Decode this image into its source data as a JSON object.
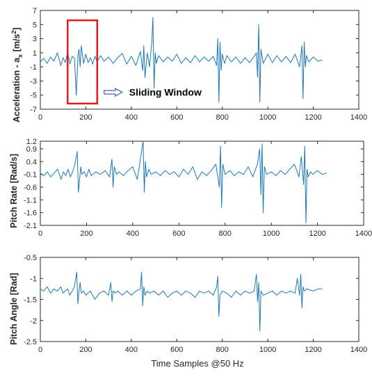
{
  "chart_data": [
    {
      "type": "line",
      "ylabel": "Acceleration - a",
      "ylabel_sub": "x",
      "ylabel_unit": "[m/s",
      "ylabel_sup": "2",
      "ylabel_close": "]",
      "xlim": [
        0,
        1400
      ],
      "ylim": [
        -7,
        7
      ],
      "xticks": [
        0,
        200,
        400,
        600,
        800,
        1000,
        1200,
        1400
      ],
      "yticks": [
        -7,
        -5,
        -3,
        -1,
        1,
        3,
        5,
        7
      ],
      "series": [
        {
          "color": "#1f77b4",
          "x": [
            0,
            15,
            30,
            45,
            60,
            75,
            90,
            100,
            110,
            120,
            130,
            140,
            150,
            158,
            162,
            166,
            170,
            175,
            180,
            190,
            200,
            210,
            220,
            230,
            240,
            250,
            265,
            280,
            300,
            320,
            340,
            360,
            380,
            400,
            420,
            440,
            450,
            455,
            460,
            470,
            480,
            490,
            495,
            500,
            505,
            510,
            520,
            540,
            560,
            580,
            600,
            620,
            640,
            660,
            680,
            700,
            720,
            740,
            760,
            775,
            780,
            785,
            790,
            795,
            800,
            810,
            820,
            840,
            860,
            880,
            900,
            920,
            940,
            950,
            955,
            960,
            965,
            970,
            980,
            1000,
            1020,
            1040,
            1060,
            1080,
            1100,
            1120,
            1140,
            1150,
            1155,
            1160,
            1165,
            1170,
            1180,
            1200,
            1220,
            1240
          ],
          "y": [
            -0.3,
            0.2,
            -0.5,
            0.4,
            -0.2,
            1.0,
            -0.8,
            0.3,
            -0.4,
            1.2,
            -0.6,
            0.5,
            0.2,
            -5.0,
            -2.0,
            0.8,
            1.5,
            -1.0,
            2.0,
            -0.5,
            0.8,
            -0.4,
            0.3,
            -0.6,
            0.5,
            -0.3,
            0.6,
            -0.2,
            0.4,
            -0.5,
            0.3,
            0.9,
            -0.6,
            0.5,
            -0.8,
            1.2,
            -1.5,
            2.0,
            -2.5,
            1.0,
            -1.0,
            2.5,
            6.0,
            -4.0,
            1.0,
            -0.5,
            0.6,
            -0.3,
            0.4,
            -0.2,
            0.8,
            -0.5,
            0.3,
            -0.4,
            0.6,
            -0.3,
            0.4,
            -0.2,
            0.5,
            -0.8,
            3.0,
            -6.0,
            2.5,
            -1.5,
            0.8,
            -0.5,
            0.6,
            -0.3,
            0.4,
            -0.5,
            0.3,
            -0.4,
            0.5,
            1.0,
            -2.5,
            5.0,
            -6.0,
            1.5,
            -0.5,
            0.8,
            -0.4,
            0.6,
            -0.3,
            0.5,
            -0.4,
            0.8,
            -1.0,
            2.0,
            -5.5,
            2.5,
            -1.0,
            0.6,
            -0.3,
            0.4,
            -0.2,
            0.0
          ]
        }
      ],
      "annotation": "Sliding Window",
      "window": {
        "x0": 120,
        "x1": 250,
        "y0": -6.2,
        "y1": 5.6,
        "color": "#e8191e"
      }
    },
    {
      "type": "line",
      "ylabel": "Pitch Rate [Rad/s]",
      "xlim": [
        0,
        1400
      ],
      "ylim": [
        -2.1,
        1.2
      ],
      "xticks": [
        0,
        200,
        400,
        600,
        800,
        1000,
        1200,
        1400
      ],
      "yticks": [
        -2.1,
        -1.6,
        -1.1,
        -0.6,
        -0.1,
        0.4,
        0.9,
        1.2
      ],
      "series": [
        {
          "color": "#1f77b4",
          "x": [
            0,
            15,
            30,
            45,
            60,
            75,
            90,
            100,
            110,
            120,
            130,
            140,
            150,
            160,
            165,
            170,
            175,
            180,
            190,
            200,
            210,
            220,
            240,
            260,
            280,
            300,
            310,
            315,
            320,
            330,
            340,
            360,
            380,
            400,
            420,
            440,
            445,
            450,
            455,
            460,
            470,
            480,
            500,
            520,
            540,
            560,
            580,
            600,
            620,
            640,
            660,
            680,
            700,
            720,
            740,
            760,
            775,
            780,
            785,
            790,
            800,
            820,
            840,
            860,
            880,
            900,
            920,
            940,
            950,
            955,
            960,
            965,
            970,
            980,
            1000,
            1020,
            1040,
            1060,
            1080,
            1100,
            1120,
            1130,
            1140,
            1145,
            1150,
            1155,
            1160,
            1170,
            1180,
            1200,
            1220,
            1240
          ],
          "y": [
            -0.05,
            -0.15,
            0.0,
            -0.2,
            -0.05,
            0.1,
            -0.3,
            0.0,
            -0.15,
            0.1,
            -0.2,
            0.0,
            0.3,
            0.8,
            -0.8,
            -0.3,
            0.2,
            -0.1,
            0.0,
            -0.2,
            0.1,
            -0.15,
            0.0,
            -0.1,
            0.05,
            -0.2,
            0.5,
            -0.6,
            0.2,
            -0.1,
            0.0,
            -0.15,
            0.05,
            0.2,
            -0.3,
            0.9,
            1.2,
            -0.8,
            0.4,
            -0.2,
            0.1,
            -0.1,
            0.0,
            -0.15,
            0.05,
            -0.1,
            0.0,
            -0.2,
            0.1,
            -0.1,
            0.2,
            -0.3,
            0.0,
            -0.15,
            0.05,
            0.3,
            -0.6,
            1.0,
            -1.4,
            0.3,
            -0.1,
            0.05,
            -0.15,
            0.0,
            -0.1,
            0.2,
            -0.2,
            0.3,
            0.9,
            -0.9,
            1.1,
            -1.6,
            0.2,
            -0.1,
            0.0,
            -0.15,
            0.05,
            -0.1,
            0.1,
            0.3,
            -0.2,
            0.6,
            -0.5,
            1.0,
            -2.0,
            0.1,
            -0.2,
            0.0,
            -0.1,
            0.05,
            -0.1,
            -0.05
          ]
        }
      ]
    },
    {
      "type": "line",
      "ylabel": "Pitch Angle [Rad]",
      "xlabel": "Time Samples @50 Hz",
      "xlim": [
        0,
        1400
      ],
      "ylim": [
        -2.5,
        -0.5
      ],
      "xticks": [
        0,
        200,
        400,
        600,
        800,
        1000,
        1200,
        1400
      ],
      "yticks": [
        -2.5,
        -2,
        -1.5,
        -1,
        -0.5
      ],
      "series": [
        {
          "color": "#1f77b4",
          "x": [
            0,
            15,
            30,
            45,
            60,
            75,
            90,
            100,
            110,
            120,
            130,
            140,
            150,
            160,
            165,
            170,
            175,
            180,
            190,
            200,
            220,
            240,
            260,
            280,
            300,
            310,
            315,
            320,
            330,
            340,
            360,
            380,
            400,
            420,
            440,
            445,
            450,
            455,
            460,
            470,
            480,
            500,
            520,
            540,
            560,
            580,
            600,
            620,
            640,
            660,
            680,
            700,
            720,
            740,
            760,
            775,
            780,
            785,
            790,
            800,
            820,
            840,
            860,
            880,
            900,
            920,
            940,
            950,
            955,
            960,
            965,
            970,
            980,
            1000,
            1020,
            1040,
            1060,
            1080,
            1100,
            1120,
            1130,
            1140,
            1145,
            1150,
            1155,
            1160,
            1170,
            1200,
            1220,
            1240
          ],
          "y": [
            -1.25,
            -1.3,
            -1.2,
            -1.35,
            -1.25,
            -1.3,
            -1.2,
            -1.35,
            -1.3,
            -1.25,
            -1.4,
            -1.3,
            -1.2,
            -0.85,
            -1.6,
            -1.3,
            -1.1,
            -1.35,
            -1.3,
            -1.4,
            -1.3,
            -1.5,
            -1.35,
            -1.3,
            -1.4,
            -1.1,
            -1.55,
            -1.3,
            -1.35,
            -1.3,
            -1.4,
            -1.3,
            -1.4,
            -1.3,
            -1.25,
            -0.85,
            -1.65,
            -1.2,
            -1.4,
            -1.3,
            -1.35,
            -1.3,
            -1.4,
            -1.3,
            -1.45,
            -1.35,
            -1.3,
            -1.4,
            -1.3,
            -1.35,
            -1.45,
            -1.3,
            -1.35,
            -1.3,
            -1.4,
            -1.2,
            -0.95,
            -1.9,
            -1.4,
            -1.3,
            -1.35,
            -1.45,
            -1.3,
            -1.4,
            -1.3,
            -1.35,
            -1.3,
            -0.9,
            -1.55,
            -1.1,
            -2.25,
            -1.3,
            -1.4,
            -1.35,
            -1.3,
            -1.4,
            -1.3,
            -1.35,
            -1.3,
            -1.35,
            -1.0,
            -1.4,
            -0.9,
            -1.7,
            -1.2,
            -1.3,
            -1.25,
            -1.3,
            -1.25,
            -1.25
          ]
        }
      ]
    }
  ]
}
